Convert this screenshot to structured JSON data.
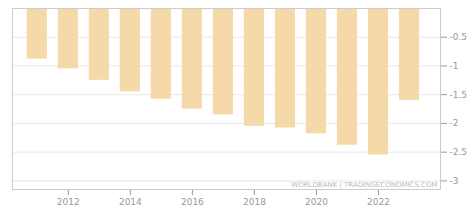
{
  "chart_data": {
    "type": "bar",
    "x": [
      2011,
      2012,
      2013,
      2014,
      2015,
      2016,
      2017,
      2018,
      2019,
      2020,
      2021,
      2022,
      2023
    ],
    "values": [
      -0.88,
      -1.05,
      -1.25,
      -1.45,
      -1.58,
      -1.75,
      -1.85,
      -2.05,
      -2.08,
      -2.18,
      -2.38,
      -2.55,
      -1.6
    ],
    "color": "#f5d9a8",
    "xlim": [
      2010.2,
      2024.0
    ],
    "xticks": [
      2012,
      2014,
      2016,
      2018,
      2020,
      2022
    ],
    "ylim": [
      -3.15,
      0.0
    ],
    "yticks": [
      -0.5,
      -1,
      -1.5,
      -2,
      -2.5,
      -3
    ],
    "grid": true,
    "annotations": [
      "WORLDBANK | TRADINGECONOMICS.COM"
    ]
  }
}
